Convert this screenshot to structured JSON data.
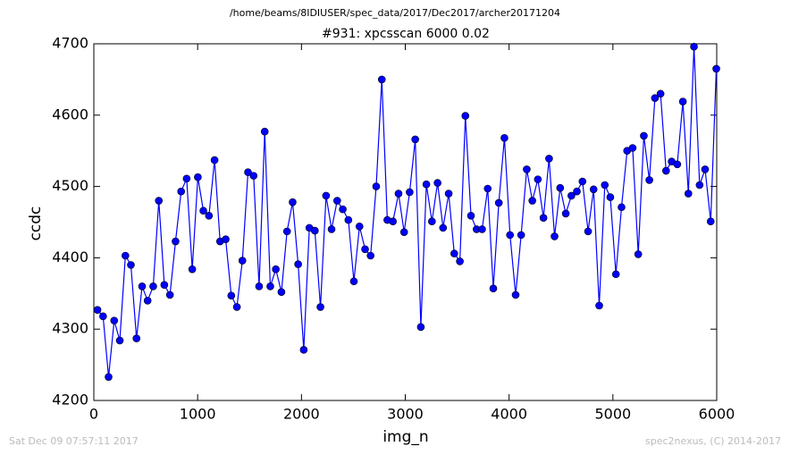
{
  "chart_data": {
    "type": "line",
    "suptitle": "/home/beams/8IDIUSER/spec_data/2017/Dec2017/archer20171204",
    "title": "#931: xpcsscan 6000 0.02",
    "x_label": "img_n",
    "y_label": "ccdc",
    "footer_left": "Sat Dec 09 07:57:11 2017",
    "footer_right": "spec2nexus, (C) 2014-2017",
    "color": "#0000ff",
    "x": [
      35,
      89,
      142,
      196,
      250,
      304,
      357,
      411,
      465,
      518,
      572,
      626,
      679,
      733,
      787,
      841,
      894,
      948,
      1002,
      1055,
      1109,
      1163,
      1216,
      1270,
      1324,
      1378,
      1431,
      1485,
      1539,
      1592,
      1646,
      1700,
      1753,
      1807,
      1861,
      1915,
      1968,
      2022,
      2076,
      2129,
      2183,
      2237,
      2290,
      2344,
      2398,
      2452,
      2505,
      2559,
      2613,
      2666,
      2720,
      2774,
      2827,
      2881,
      2935,
      2989,
      3042,
      3096,
      3150,
      3203,
      3257,
      3311,
      3364,
      3418,
      3472,
      3526,
      3579,
      3633,
      3687,
      3740,
      3794,
      3848,
      3901,
      3955,
      4009,
      4063,
      4116,
      4170,
      4224,
      4277,
      4331,
      4385,
      4438,
      4492,
      4546,
      4600,
      4653,
      4707,
      4761,
      4814,
      4868,
      4922,
      4975,
      5029,
      5083,
      5137,
      5190,
      5244,
      5298,
      5351,
      5405,
      5459,
      5512,
      5566,
      5620,
      5674,
      5727,
      5781,
      5835,
      5888,
      5942,
      5996
    ],
    "values": [
      4327,
      4318,
      4233,
      4312,
      4284,
      4403,
      4390,
      4287,
      4360,
      4340,
      4360,
      4480,
      4362,
      4348,
      4423,
      4493,
      4511,
      4384,
      4513,
      4466,
      4459,
      4537,
      4423,
      4426,
      4347,
      4331,
      4396,
      4520,
      4515,
      4360,
      4577,
      4360,
      4384,
      4352,
      4437,
      4478,
      4391,
      4271,
      4442,
      4438,
      4331,
      4487,
      4440,
      4480,
      4468,
      4453,
      4367,
      4444,
      4412,
      4403,
      4500,
      4650,
      4453,
      4451,
      4490,
      4436,
      4492,
      4566,
      4303,
      4503,
      4451,
      4505,
      4442,
      4490,
      4406,
      4395,
      4599,
      4459,
      4440,
      4440,
      4497,
      4357,
      4477,
      4568,
      4432,
      4348,
      4432,
      4524,
      4480,
      4510,
      4456,
      4539,
      4430,
      4498,
      4462,
      4487,
      4493,
      4507,
      4437,
      4496,
      4333,
      4502,
      4485,
      4377,
      4471,
      4550,
      4554,
      4405,
      4571,
      4509,
      4624,
      4630,
      4522,
      4535,
      4531,
      4619,
      4490,
      4696,
      4502,
      4524,
      4451,
      4665
    ],
    "xlim": [
      0,
      6000
    ],
    "xticks": [
      0,
      1000,
      2000,
      3000,
      4000,
      5000,
      6000
    ],
    "ylim": [
      4200,
      4700
    ],
    "yticks": [
      4200,
      4300,
      4400,
      4500,
      4600,
      4700
    ]
  }
}
